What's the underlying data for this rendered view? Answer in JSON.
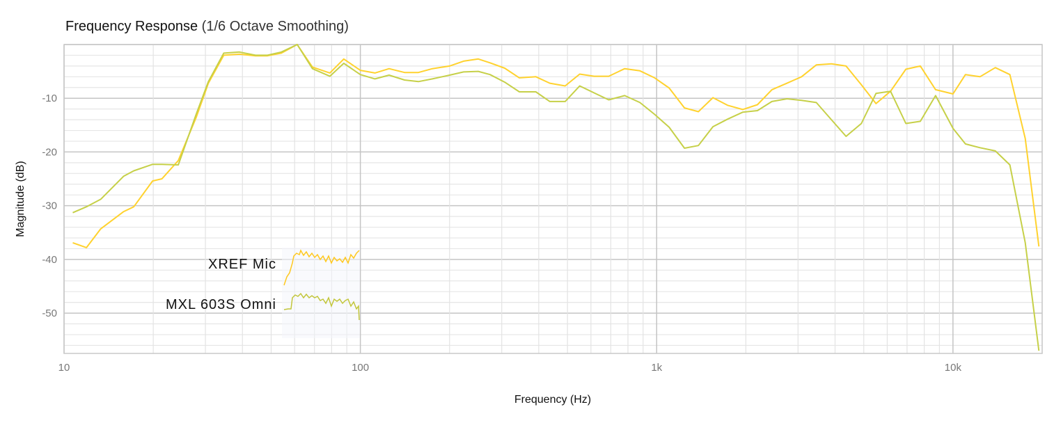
{
  "chart_data": {
    "type": "line",
    "title": "Frequency Response",
    "subtitle": "(1/6 Octave Smoothing)",
    "xlabel": "Frequency (Hz)",
    "ylabel": "Magnitude (dB)",
    "xscale": "log",
    "xlim": [
      10,
      20000
    ],
    "ylim": [
      -57.5,
      0
    ],
    "grid": true,
    "x_ticks": [
      10,
      100,
      1000,
      10000
    ],
    "x_tick_labels": [
      "10",
      "100",
      "1k",
      "10k"
    ],
    "y_ticks": [
      -10,
      -20,
      -30,
      -40,
      -50
    ],
    "y_tick_labels": [
      "-10",
      "-20",
      "-30",
      "-40",
      "-50"
    ],
    "legend_placement": "lower-left inside",
    "x": [
      10.7,
      11.9,
      13.3,
      15.9,
      17.2,
      19.9,
      21.4,
      24.3,
      27.9,
      30.7,
      34.6,
      39.1,
      44.3,
      48.6,
      54.1,
      61.2,
      68.9,
      78.9,
      87.9,
      100,
      112,
      125,
      141,
      157,
      175,
      200,
      223,
      250,
      274,
      307,
      344,
      391,
      436,
      491,
      550,
      615,
      689,
      780,
      878,
      984,
      1102,
      1241,
      1383,
      1549,
      1734,
      1951,
      2188,
      2449,
      2754,
      3084,
      3459,
      3890,
      4356,
      4908,
      5497,
      6155,
      6934,
      7762,
      8738,
      10000,
      11020,
      12340,
      13900,
      15560,
      17540,
      19500
    ],
    "series": [
      {
        "name": "XREF Mic",
        "color": "#FFD22E",
        "values": [
          -36.9,
          -37.8,
          -34.3,
          -31.1,
          -30.2,
          -25.4,
          -25.0,
          -21.6,
          -13.6,
          -7.2,
          -2.0,
          -1.8,
          -2.1,
          -2.1,
          -1.6,
          0,
          -4.2,
          -5.3,
          -2.7,
          -4.8,
          -5.3,
          -4.5,
          -5.2,
          -5.2,
          -4.5,
          -4.0,
          -3.1,
          -2.7,
          -3.4,
          -4.4,
          -6.2,
          -6.0,
          -7.2,
          -7.7,
          -5.5,
          -5.9,
          -5.9,
          -4.5,
          -4.9,
          -6.2,
          -8.1,
          -11.8,
          -12.5,
          -9.9,
          -11.3,
          -12.1,
          -11.2,
          -8.4,
          -7.2,
          -6.0,
          -3.8,
          -3.6,
          -4.0,
          -7.5,
          -11.0,
          -8.7,
          -4.6,
          -4.0,
          -8.4,
          -9.2,
          -5.6,
          -6.0,
          -4.3,
          -5.6,
          -17.5,
          -37.6
        ]
      },
      {
        "name": "MXL 603S Omni",
        "color": "#C6D048",
        "values": [
          -31.3,
          -30.2,
          -28.8,
          -24.5,
          -23.5,
          -22.3,
          -22.3,
          -22.4,
          -13.0,
          -6.9,
          -1.6,
          -1.4,
          -2.0,
          -2.0,
          -1.4,
          0,
          -4.5,
          -5.9,
          -3.5,
          -5.6,
          -6.4,
          -5.7,
          -6.6,
          -6.9,
          -6.4,
          -5.7,
          -5.1,
          -5.0,
          -5.6,
          -7.0,
          -8.8,
          -8.8,
          -10.6,
          -10.6,
          -7.7,
          -9.0,
          -10.3,
          -9.5,
          -10.8,
          -13.0,
          -15.4,
          -19.3,
          -18.8,
          -15.3,
          -13.9,
          -12.6,
          -12.3,
          -10.6,
          -10.1,
          -10.4,
          -10.8,
          -14.0,
          -17.1,
          -14.7,
          -9.1,
          -8.7,
          -14.7,
          -14.3,
          -9.5,
          -15.6,
          -18.5,
          -19.2,
          -19.8,
          -22.4,
          -36.9,
          -57.0
        ]
      }
    ]
  }
}
